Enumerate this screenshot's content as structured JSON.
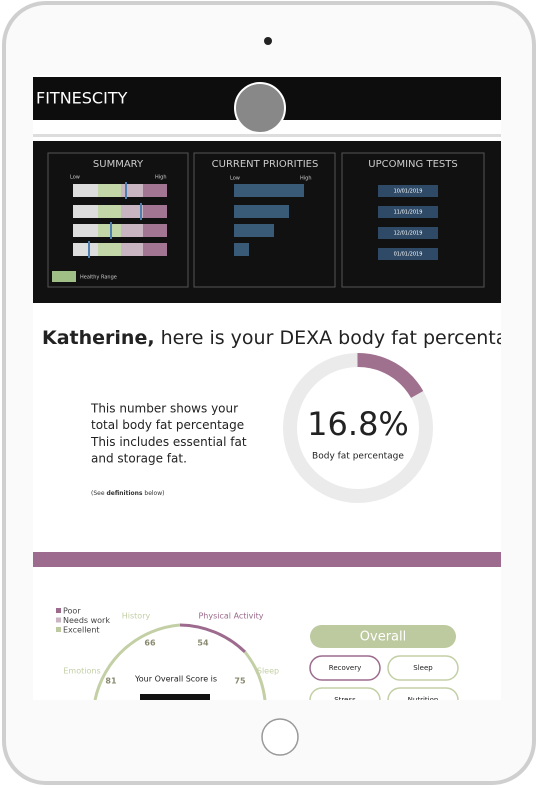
{
  "header": {
    "brand": "FITNESCITY"
  },
  "panels": {
    "summary": {
      "title": "SUMMARY",
      "low": "Low",
      "high": "High",
      "legend": "Healthy Range"
    },
    "priorities": {
      "title": "CURRENT PRIORITIES",
      "low": "Low",
      "high": "High"
    },
    "tests": {
      "title": "UPCOMING TESTS",
      "dates": [
        "10/01/2019",
        "11/01/2019",
        "12/01/2019",
        "01/01/2019"
      ]
    }
  },
  "dexa": {
    "name": "Katherine,",
    "heading": "here is your DEXA body fat percentage",
    "description": [
      "This number shows your",
      "total body fat percentage",
      "This includes essential fat",
      "and storage fat."
    ],
    "note_prefix": "(See ",
    "note_bold": "definitions",
    "note_suffix": " below)",
    "body_fat": {
      "value": 16.8,
      "label": "16.8%"
    },
    "ring_label": "Body fat percentage"
  },
  "score": {
    "legend": [
      "Poor",
      "Needs work",
      "Excellent"
    ],
    "gauge": [
      {
        "label": "History",
        "value": "66"
      },
      {
        "label": "Physical Activity",
        "value": "54"
      },
      {
        "label": "Emotions",
        "value": "81"
      },
      {
        "label": "Sleep",
        "value": "75"
      }
    ],
    "caption": "Your Overall Score is",
    "overall": "Overall",
    "buttons": [
      "Recovery",
      "Sleep",
      "Stress",
      "Nutrition"
    ]
  }
}
